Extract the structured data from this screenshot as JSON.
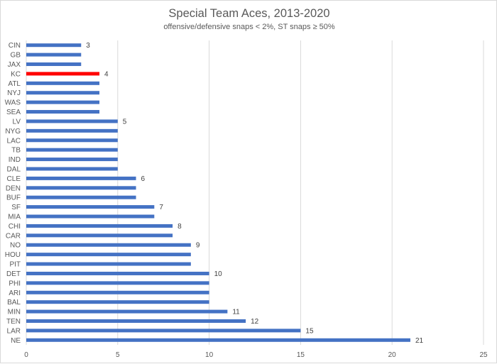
{
  "chart_data": {
    "type": "bar",
    "orientation": "horizontal",
    "title": "Special Team Aces, 2013-2020",
    "subtitle": "offensive/defensive snaps < 2%, ST snaps ≥ 50%",
    "xlim": [
      0,
      25
    ],
    "xticks": [
      0,
      5,
      10,
      15,
      20,
      25
    ],
    "grid": true,
    "colors": {
      "default": "#4472c4",
      "highlight": "#ff0000"
    },
    "highlight": "KC",
    "categories": [
      "CIN",
      "GB",
      "JAX",
      "KC",
      "ATL",
      "NYJ",
      "WAS",
      "SEA",
      "LV",
      "NYG",
      "LAC",
      "TB",
      "IND",
      "DAL",
      "CLE",
      "DEN",
      "BUF",
      "SF",
      "MIA",
      "CHI",
      "CAR",
      "NO",
      "HOU",
      "PIT",
      "DET",
      "PHI",
      "ARI",
      "BAL",
      "MIN",
      "TEN",
      "LAR",
      "NE"
    ],
    "values": [
      3,
      3,
      3,
      4,
      4,
      4,
      4,
      4,
      5,
      5,
      5,
      5,
      5,
      5,
      6,
      6,
      6,
      7,
      7,
      8,
      8,
      9,
      9,
      9,
      10,
      10,
      10,
      10,
      11,
      12,
      15,
      21
    ],
    "data_labels": {
      "CIN": "3",
      "KC": "4",
      "LV": "5",
      "CLE": "6",
      "SF": "7",
      "CHI": "8",
      "NO": "9",
      "DET": "10",
      "MIN": "11",
      "TEN": "12",
      "LAR": "15",
      "NE": "21"
    }
  }
}
